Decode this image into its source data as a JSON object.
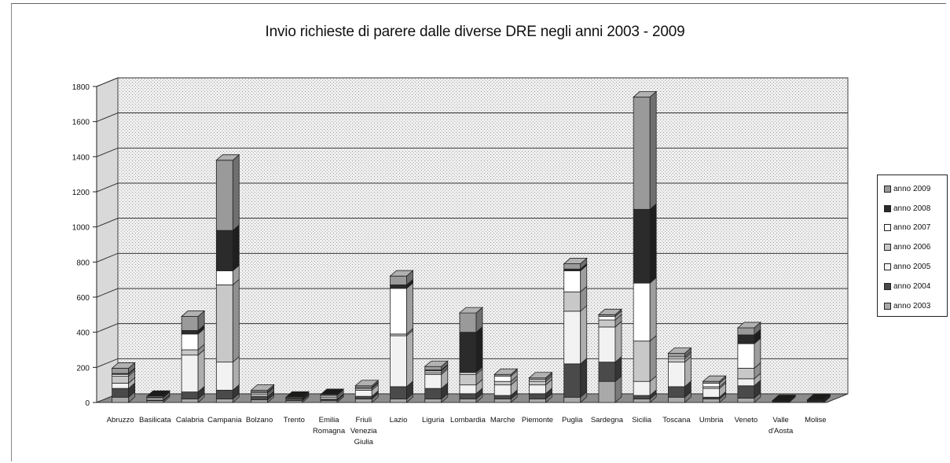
{
  "chart_data": {
    "type": "bar",
    "stacked": true,
    "three_d": true,
    "title": "Invio richieste di parere dalle diverse DRE negli anni 2003 - 2009",
    "ylim": [
      0,
      1800
    ],
    "yticks": [
      "0",
      "200",
      "400",
      "600",
      "800",
      "1000",
      "1200",
      "1400",
      "1600",
      "1800"
    ],
    "grid": true,
    "legend_position": "right",
    "categories": [
      "Abruzzo",
      "Basilicata",
      "Calabria",
      "Campania",
      "Bolzano",
      "Trento",
      "Emilia Romagna",
      "Friuli Venezia Giulia",
      "Lazio",
      "Liguria",
      "Lombardia",
      "Marche",
      "Piemonte",
      "Puglia",
      "Sardegna",
      "Sicilia",
      "Toscana",
      "Umbria",
      "Veneto",
      "Valle d'Aosta",
      "Molise"
    ],
    "category_labels": [
      [
        "Abruzzo"
      ],
      [
        "Basilicata"
      ],
      [
        "Calabria"
      ],
      [
        "Campania"
      ],
      [
        "Bolzano"
      ],
      [
        "Trento"
      ],
      [
        "Emilia",
        "Romagna"
      ],
      [
        "Friuli",
        "Venezia",
        "Giulia"
      ],
      [
        "Lazio"
      ],
      [
        "Liguria"
      ],
      [
        "Lombardia"
      ],
      [
        "Marche"
      ],
      [
        "Piemonte"
      ],
      [
        "Puglia"
      ],
      [
        "Sardegna"
      ],
      [
        "Sicilia"
      ],
      [
        "Toscana"
      ],
      [
        "Umbria"
      ],
      [
        "Veneto"
      ],
      [
        "Valle",
        "d'Aosta"
      ],
      [
        "Molise"
      ]
    ],
    "series": [
      {
        "name": "anno 2003",
        "color": "#a9a9a9",
        "values": [
          30,
          10,
          20,
          20,
          15,
          10,
          10,
          20,
          20,
          20,
          20,
          20,
          20,
          30,
          120,
          20,
          30,
          20,
          25,
          3,
          5
        ]
      },
      {
        "name": "anno 2004",
        "color": "#4a4a4a",
        "values": [
          50,
          5,
          40,
          50,
          20,
          5,
          10,
          15,
          70,
          60,
          30,
          20,
          30,
          190,
          110,
          20,
          60,
          10,
          70,
          2,
          3
        ]
      },
      {
        "name": "anno 2005",
        "color": "#f2f2f2",
        "values": [
          30,
          10,
          210,
          160,
          10,
          5,
          10,
          35,
          290,
          80,
          50,
          60,
          50,
          300,
          200,
          80,
          140,
          50,
          40,
          2,
          2
        ]
      },
      {
        "name": "anno 2006",
        "color": "#c8c8c8",
        "values": [
          40,
          5,
          30,
          440,
          10,
          5,
          10,
          10,
          10,
          10,
          60,
          20,
          20,
          110,
          40,
          230,
          20,
          10,
          60,
          2,
          3
        ]
      },
      {
        "name": "anno 2007",
        "color": "#ffffff",
        "values": [
          10,
          5,
          90,
          80,
          5,
          5,
          5,
          5,
          260,
          10,
          10,
          30,
          10,
          120,
          20,
          330,
          10,
          20,
          140,
          2,
          2
        ]
      },
      {
        "name": "anno 2008",
        "color": "#2b2b2b",
        "values": [
          5,
          0,
          20,
          230,
          0,
          0,
          0,
          0,
          20,
          5,
          230,
          0,
          0,
          10,
          0,
          420,
          0,
          0,
          50,
          0,
          0
        ]
      },
      {
        "name": "anno 2009",
        "color": "#9a9a9a",
        "values": [
          30,
          0,
          80,
          400,
          10,
          0,
          0,
          10,
          50,
          20,
          110,
          10,
          10,
          30,
          10,
          640,
          20,
          10,
          40,
          0,
          0
        ]
      }
    ]
  }
}
